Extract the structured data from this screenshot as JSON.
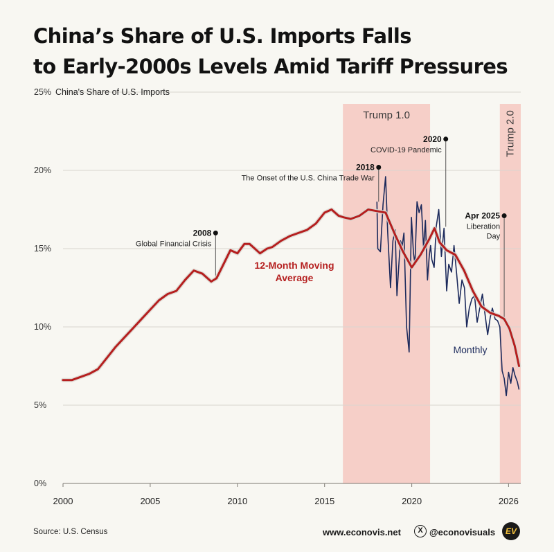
{
  "title": {
    "line1": "China’s Share of U.S. Imports Falls",
    "line2": "to Early-2000s Levels Amid Tariff Pressures"
  },
  "footer": {
    "source": "Source: U.S. Census",
    "website": "www.econovis.net",
    "handle": "@econovisuals",
    "x_icon": "X",
    "logo_text": "EV"
  },
  "colors": {
    "background": "#f8f7f2",
    "moving_average": "#b51f1f",
    "monthly": "#1c2a5c",
    "shade": "#f6cfc8",
    "grid": "#d9d6cf"
  },
  "chart_data": {
    "type": "line",
    "ylabel": "China's Share of U.S. Imports",
    "ylim": [
      0,
      25
    ],
    "yticks": [
      "25%",
      "20%",
      "15%",
      "10%",
      "5%",
      "0%"
    ],
    "ytick_values": [
      25,
      20,
      15,
      10,
      5,
      0
    ],
    "xlim": [
      2000,
      2026.25
    ],
    "xticks": [
      "2000",
      "2005",
      "2010",
      "2015",
      "2020",
      "2026"
    ],
    "xtick_values": [
      2000,
      2005,
      2010,
      2015,
      2020,
      2025.55
    ],
    "grid": true,
    "periods": [
      {
        "name": "Trump 1.0",
        "start": 2016.05,
        "end": 2021.05,
        "orientation": "horizontal"
      },
      {
        "name": "Trump 2.0",
        "start": 2025.05,
        "end": 2026.25,
        "orientation": "vertical"
      }
    ],
    "series": [
      {
        "name": "12-Month Moving Average",
        "x": [
          2000.0,
          2000.5,
          2001.0,
          2001.5,
          2002.0,
          2002.5,
          2003.0,
          2003.5,
          2004.0,
          2004.5,
          2005.0,
          2005.5,
          2006.0,
          2006.5,
          2007.0,
          2007.5,
          2008.0,
          2008.5,
          2008.8,
          2009.2,
          2009.6,
          2010.0,
          2010.4,
          2010.7,
          2011.0,
          2011.3,
          2011.7,
          2012.0,
          2012.5,
          2013.0,
          2013.5,
          2014.0,
          2014.5,
          2015.0,
          2015.4,
          2015.8,
          2016.1,
          2016.5,
          2017.0,
          2017.5,
          2018.0,
          2018.5,
          2019.0,
          2019.5,
          2020.0,
          2020.5,
          2021.0,
          2021.3,
          2021.6,
          2022.0,
          2022.5,
          2023.0,
          2023.5,
          2024.0,
          2024.5,
          2025.0,
          2025.3,
          2025.6,
          2025.9,
          2026.15
        ],
        "values": [
          6.6,
          6.6,
          6.8,
          7.0,
          7.3,
          8.0,
          8.7,
          9.3,
          9.9,
          10.5,
          11.1,
          11.7,
          12.1,
          12.3,
          13.0,
          13.6,
          13.4,
          12.9,
          13.1,
          14.0,
          14.9,
          14.7,
          15.3,
          15.3,
          15.0,
          14.7,
          15.0,
          15.1,
          15.5,
          15.8,
          16.0,
          16.2,
          16.6,
          17.3,
          17.5,
          17.1,
          17.0,
          16.9,
          17.1,
          17.5,
          17.4,
          17.3,
          16.0,
          14.8,
          13.8,
          14.6,
          15.6,
          16.3,
          15.4,
          14.9,
          14.6,
          13.6,
          12.3,
          11.3,
          10.9,
          10.7,
          10.5,
          9.9,
          8.8,
          7.5
        ]
      },
      {
        "name": "Monthly",
        "x": [
          2018.0,
          2018.05,
          2018.2,
          2018.35,
          2018.5,
          2018.62,
          2018.78,
          2018.92,
          2019.05,
          2019.15,
          2019.25,
          2019.35,
          2019.45,
          2019.55,
          2019.7,
          2019.85,
          2019.98,
          2020.1,
          2020.18,
          2020.3,
          2020.42,
          2020.55,
          2020.68,
          2020.78,
          2020.9,
          2021.0,
          2021.08,
          2021.15,
          2021.28,
          2021.4,
          2021.55,
          2021.7,
          2021.85,
          2022.0,
          2022.12,
          2022.28,
          2022.42,
          2022.58,
          2022.72,
          2022.88,
          2023.02,
          2023.15,
          2023.3,
          2023.45,
          2023.6,
          2023.75,
          2023.9,
          2024.05,
          2024.2,
          2024.35,
          2024.5,
          2024.62,
          2024.78,
          2024.92,
          2025.05,
          2025.18,
          2025.3,
          2025.42,
          2025.55,
          2025.68,
          2025.8,
          2025.92,
          2026.05,
          2026.15
        ],
        "values": [
          18.0,
          15.0,
          14.8,
          17.8,
          19.6,
          16.0,
          12.5,
          15.5,
          16.2,
          12.0,
          13.8,
          15.5,
          15.2,
          16.0,
          10.0,
          8.4,
          17.0,
          14.7,
          14.0,
          18.0,
          17.3,
          17.8,
          15.0,
          16.8,
          13.0,
          14.5,
          15.2,
          14.3,
          13.8,
          16.4,
          17.5,
          14.5,
          16.3,
          12.3,
          14.0,
          13.5,
          15.2,
          13.3,
          11.5,
          13.0,
          12.5,
          10.0,
          11.2,
          11.8,
          12.0,
          10.3,
          11.2,
          12.1,
          10.8,
          9.5,
          10.6,
          11.2,
          10.5,
          10.4,
          10.0,
          7.2,
          6.7,
          5.6,
          7.1,
          6.4,
          7.4,
          6.9,
          6.5,
          6.0
        ]
      }
    ],
    "labels": {
      "moving_average": [
        "12-Month Moving",
        "Average"
      ],
      "monthly": "Monthly"
    },
    "annotations": [
      {
        "year_label": "2008",
        "text": [
          "Global Financial Crisis"
        ],
        "x": 2008.75,
        "y_top": 16.0,
        "y_bottom": 13.0
      },
      {
        "year_label": "2018",
        "text": [
          "The Onset of the U.S. China Trade War"
        ],
        "x": 2018.1,
        "y_top": 20.2,
        "y_bottom": 18.0
      },
      {
        "year_label": "2020",
        "text": [
          "COVID-19 Pandemic"
        ],
        "x": 2021.95,
        "y_top": 22.0,
        "y_bottom": 16.4
      },
      {
        "year_label": "Apr 2025",
        "text": [
          "Liberation",
          "Day"
        ],
        "x": 2025.3,
        "y_top": 17.1,
        "y_bottom": 10.5
      }
    ]
  }
}
